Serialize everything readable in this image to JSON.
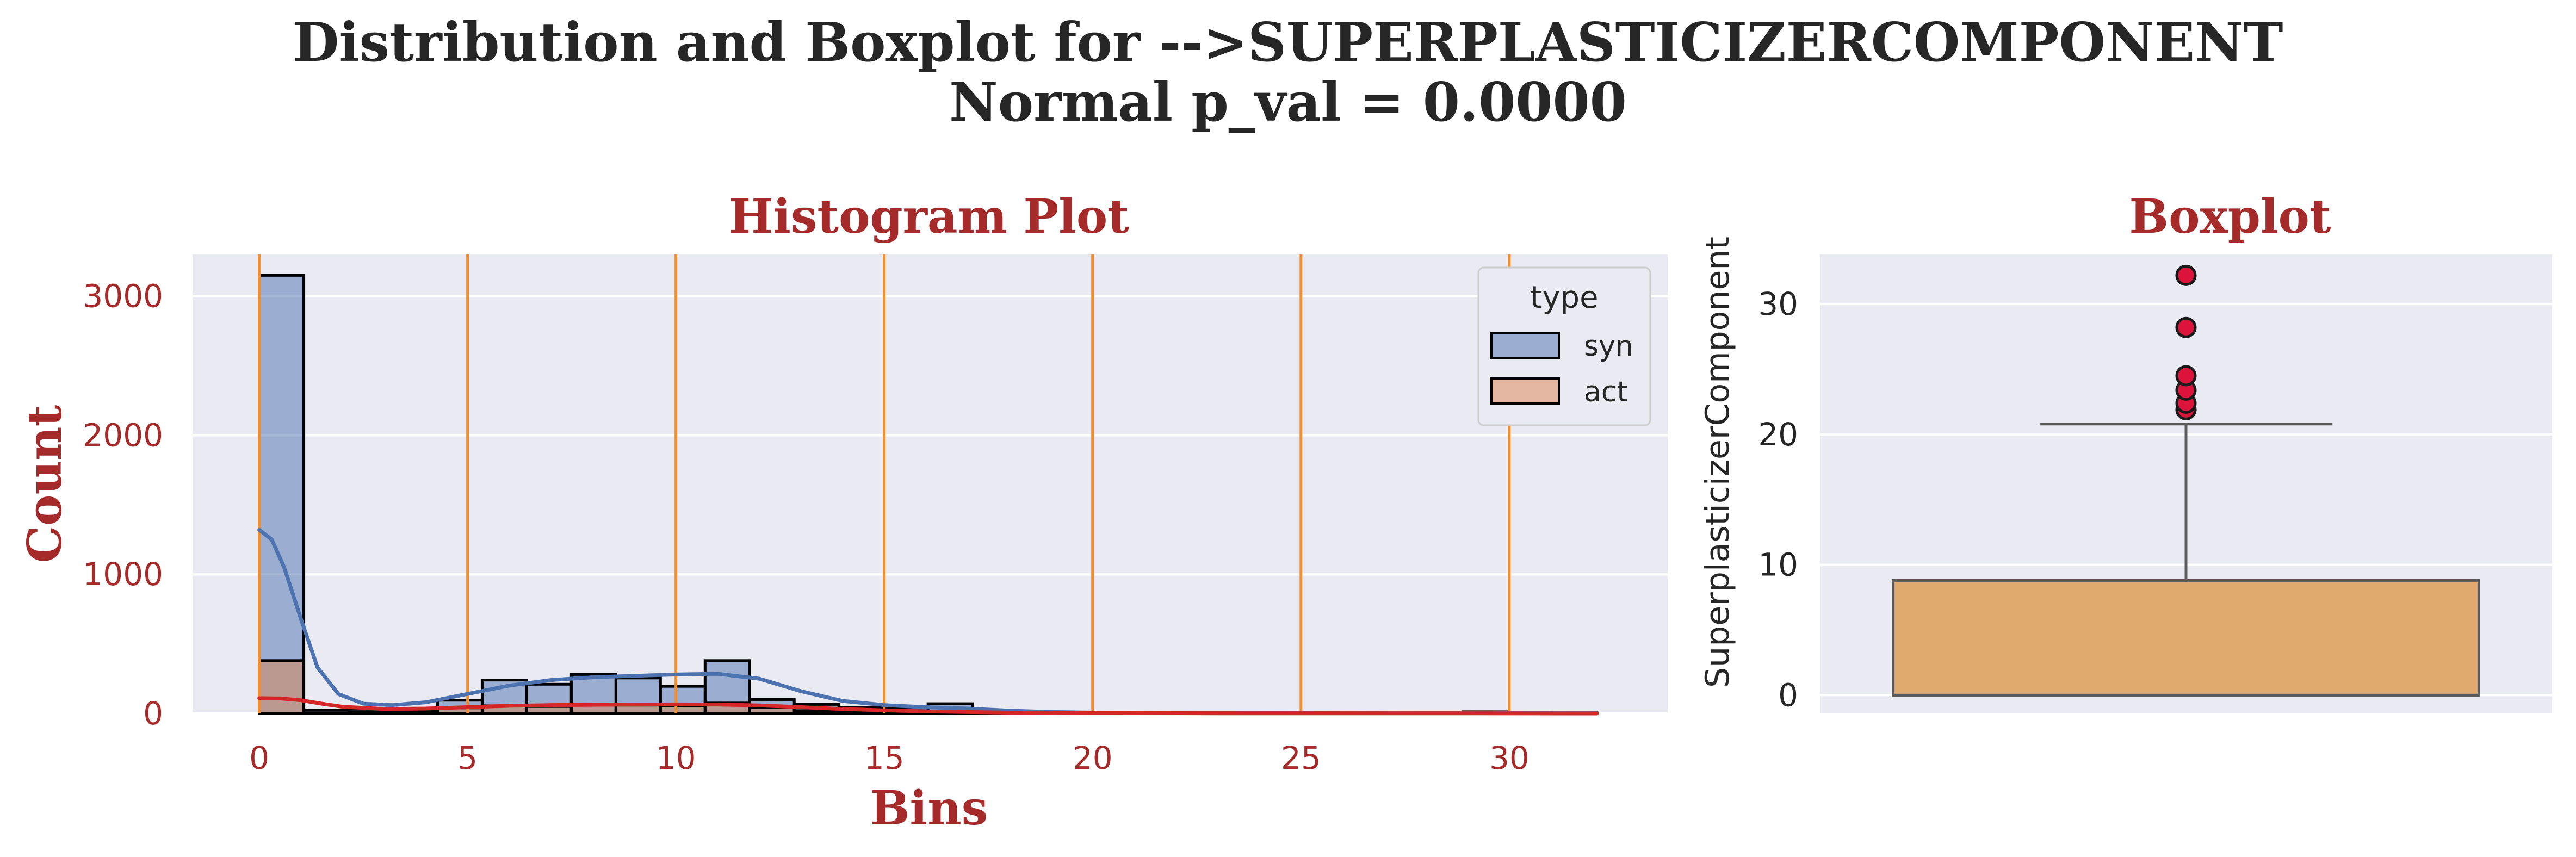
{
  "figure": {
    "title_line1": "Distribution and Boxplot for -->SUPERPLASTICIZERCOMPONENT",
    "title_line2": "Normal p_val = 0.0000"
  },
  "chart_data": [
    {
      "type": "bar",
      "subtype": "histogram-with-kde",
      "title": "Histogram Plot",
      "xlabel": "Bins",
      "ylabel": "Count",
      "xlim": [
        -1.6,
        33.8
      ],
      "ylim": [
        0,
        3300
      ],
      "xticks": [
        0,
        5,
        10,
        15,
        20,
        25,
        30
      ],
      "yticks": [
        0,
        1000,
        2000,
        3000
      ],
      "vlines": [
        0,
        5,
        10,
        15,
        20,
        25,
        30
      ],
      "vline_color": "#f28e2b",
      "grid": true,
      "legend": {
        "title": "type",
        "placement": "top-right",
        "entries": [
          "syn",
          "act"
        ]
      },
      "bin_edges": [
        0,
        1.07,
        2.14,
        3.21,
        4.28,
        5.35,
        6.42,
        7.49,
        8.56,
        9.63,
        10.7,
        11.77,
        12.84,
        13.91,
        14.98,
        16.05,
        17.12,
        18.19,
        19.26,
        20.33,
        21.4,
        22.47,
        23.54,
        24.61,
        25.68,
        26.75,
        27.82,
        28.89,
        29.96,
        31.03,
        32.1
      ],
      "series": [
        {
          "name": "syn",
          "color": "#4c72b0",
          "counts": [
            3150,
            25,
            30,
            35,
            95,
            240,
            210,
            280,
            255,
            195,
            380,
            100,
            65,
            45,
            40,
            70,
            22,
            8,
            5,
            3,
            2,
            2,
            5,
            2,
            2,
            2,
            2,
            12,
            2,
            8
          ],
          "kde_x": [
            0,
            0.3,
            0.6,
            1.0,
            1.4,
            1.9,
            2.5,
            3.2,
            4.0,
            5.0,
            6.0,
            7.0,
            8.0,
            9.0,
            10.0,
            11.0,
            12.0,
            13.0,
            14.0,
            15.0,
            16.0,
            17.0,
            18.0,
            19.0,
            20.0,
            22.0,
            25.0,
            28.0,
            30.0,
            32.1
          ],
          "kde_y": [
            1320,
            1250,
            1050,
            680,
            330,
            140,
            70,
            60,
            80,
            140,
            200,
            240,
            260,
            270,
            280,
            285,
            250,
            160,
            90,
            60,
            45,
            35,
            20,
            10,
            6,
            4,
            3,
            5,
            4,
            3
          ]
        },
        {
          "name": "act",
          "color": "#dd8452",
          "counts": [
            380,
            5,
            10,
            15,
            40,
            55,
            50,
            60,
            60,
            55,
            75,
            45,
            20,
            15,
            15,
            15,
            5,
            2,
            1,
            1,
            0,
            0,
            1,
            0,
            0,
            0,
            0,
            2,
            0,
            1
          ],
          "kde_line_color": "#d62728",
          "kde_x": [
            0,
            0.5,
            1.0,
            1.5,
            2.0,
            3.0,
            4.0,
            5.0,
            6.0,
            7.0,
            8.0,
            9.0,
            10.0,
            11.0,
            12.0,
            13.0,
            14.0,
            15.0,
            16.0,
            17.0,
            18.0,
            20.0,
            23.0,
            26.0,
            29.0,
            32.1
          ],
          "kde_y": [
            110,
            108,
            95,
            70,
            48,
            32,
            35,
            45,
            55,
            60,
            62,
            64,
            65,
            64,
            58,
            45,
            32,
            22,
            15,
            10,
            6,
            3,
            1,
            1,
            1,
            0
          ]
        }
      ]
    },
    {
      "type": "boxplot",
      "title": "Boxplot",
      "ylabel": "SuperplasticizerComponent",
      "ylim": [
        -1.4,
        33.8
      ],
      "yticks": [
        0,
        10,
        20,
        30
      ],
      "grid": true,
      "box_color": "#e0a96d",
      "outlier_color": "#dc143c",
      "stats": {
        "whislo": 0,
        "q1": 0,
        "median": 0,
        "q3": 8.8,
        "whishi": 20.8
      },
      "outliers": [
        21.9,
        22.4,
        23.4,
        24.5,
        28.2,
        32.2
      ]
    }
  ]
}
